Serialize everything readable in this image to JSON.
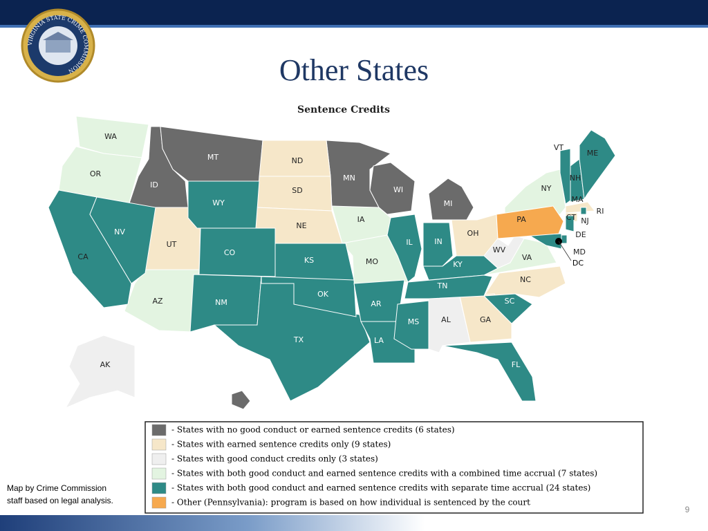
{
  "header": {
    "logo_text": "VIRGINIA STATE CRIME COMMISSION",
    "title": "Other States"
  },
  "map": {
    "title": "Sentence Credits",
    "dc_label": "DC",
    "legend": {
      "items": [
        {
          "color": "#6b6b6b",
          "label": "- States with no good conduct or earned sentence credits (6 states)",
          "states": [
            "ID",
            "MT",
            "MN",
            "WI",
            "MI",
            "HI"
          ]
        },
        {
          "color": "#f6e7c9",
          "label": "- States with earned sentence credits only (9 states)",
          "states": [
            "ND",
            "SD",
            "NE",
            "UT",
            "OH",
            "NC",
            "GA",
            "MA",
            "CT"
          ]
        },
        {
          "color": "#efefef",
          "label": "- States with good conduct credits only (3 states)",
          "states": [
            "AK",
            "AL",
            "WV"
          ]
        },
        {
          "color": "#e3f4e1",
          "label": "- States with both good conduct and earned sentence credits with a combined time accrual (7 states)",
          "states": [
            "WA",
            "OR",
            "AZ",
            "IA",
            "MO",
            "NY",
            "VA"
          ]
        },
        {
          "color": "#2e8a86",
          "label": "- States with both good conduct and earned sentence credits with separate time accrual (24 states)",
          "states": [
            "CA",
            "NV",
            "WY",
            "CO",
            "NM",
            "TX",
            "KS",
            "OK",
            "AR",
            "LA",
            "MS",
            "IL",
            "IN",
            "KY",
            "TN",
            "SC",
            "FL",
            "NH",
            "VT",
            "ME",
            "NJ",
            "DE",
            "MD",
            "RI"
          ]
        },
        {
          "color": "#f6a94f",
          "label": "- Other (Pennsylvania): program is based on how individual is sentenced by the court",
          "states": [
            "PA"
          ]
        }
      ]
    }
  },
  "caption": {
    "lines": [
      "Map by Crime Commission",
      "staff based on legal analysis."
    ]
  },
  "page_number": "9"
}
